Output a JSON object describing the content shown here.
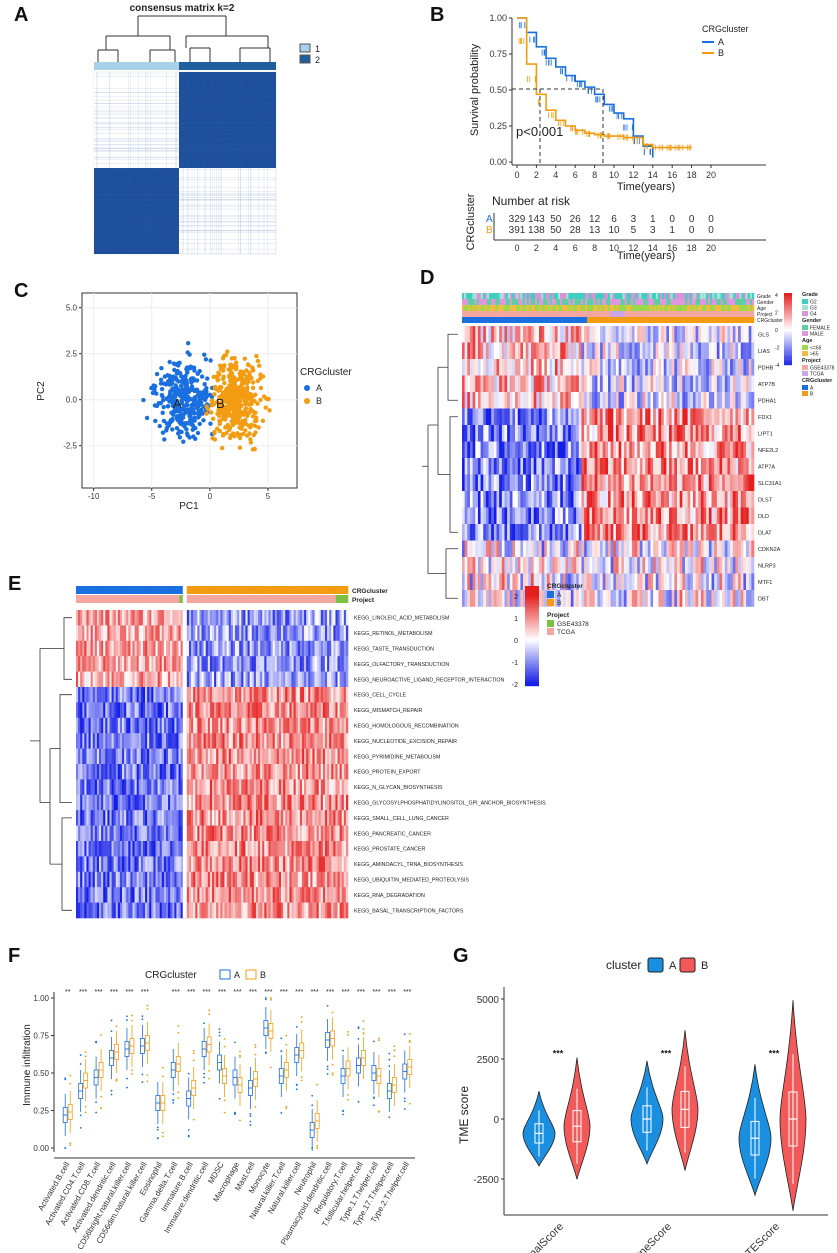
{
  "labels": {
    "a": "A",
    "b": "B",
    "c": "C",
    "d": "D",
    "e": "E",
    "f": "F",
    "g": "G"
  },
  "colors": {
    "A": "#1a6fe0",
    "B": "#f39c12",
    "darkblue": "#1f3f8a",
    "project1": "#7cc242",
    "project2": "#f4a6a0",
    "red": "#f25a5a"
  },
  "panelA": {
    "title": "consensus matrix k=2",
    "legend": [
      "1",
      "2"
    ]
  },
  "panelB": {
    "legend_title": "CRGcluster",
    "legend": [
      "A",
      "B"
    ],
    "ylabel": "Survival probability",
    "xlabel": "Time(years)",
    "pvalue": "p<0.001",
    "yticks": [
      "1.00",
      "0.75",
      "0.50",
      "0.25",
      "0.00"
    ],
    "xticks": [
      "0",
      "2",
      "4",
      "6",
      "8",
      "10",
      "12",
      "14",
      "16",
      "18",
      "20"
    ],
    "risk_title": "Number at risk",
    "risk_ylabel": "CRGcluster",
    "risk_rows": [
      {
        "group": "A",
        "values": [
          "329",
          "143",
          "50",
          "26",
          "12",
          "6",
          "3",
          "1",
          "0",
          "0",
          "0"
        ]
      },
      {
        "group": "B",
        "values": [
          "391",
          "138",
          "50",
          "28",
          "13",
          "10",
          "5",
          "3",
          "1",
          "0",
          "0"
        ]
      }
    ],
    "risk_xlabel": "Time(years)",
    "chart_data": {
      "type": "line",
      "title": "",
      "xlabel": "Time(years)",
      "ylabel": "Survival probability",
      "xlim": [
        0,
        20
      ],
      "ylim": [
        0,
        1
      ],
      "series": [
        {
          "name": "A",
          "x": [
            0,
            1,
            2,
            3,
            4,
            5,
            6,
            7,
            8,
            9,
            10,
            11,
            12,
            13,
            14
          ],
          "values": [
            1.0,
            0.9,
            0.8,
            0.72,
            0.66,
            0.6,
            0.56,
            0.52,
            0.47,
            0.4,
            0.34,
            0.3,
            0.18,
            0.11,
            0.03
          ]
        },
        {
          "name": "B",
          "x": [
            0,
            1,
            2,
            3,
            4,
            5,
            6,
            7,
            8,
            9,
            10,
            11,
            12,
            13,
            14,
            15,
            16,
            17,
            18
          ],
          "values": [
            1.0,
            0.68,
            0.47,
            0.36,
            0.29,
            0.25,
            0.22,
            0.2,
            0.19,
            0.18,
            0.18,
            0.17,
            0.17,
            0.12,
            0.1,
            0.1,
            0.1,
            0.1,
            0.1
          ]
        }
      ]
    }
  },
  "panelC": {
    "xlabel": "PC1",
    "ylabel": "PC2",
    "xticks": [
      "-10",
      "-5",
      "0",
      "5"
    ],
    "yticks": [
      "5.0",
      "2.5",
      "0.0",
      "-2.5"
    ],
    "legend_title": "CRGcluster",
    "legend": [
      "A",
      "B"
    ],
    "center_labels": [
      "A",
      "B"
    ]
  },
  "panelD": {
    "genes": [
      "GLS",
      "LIAS",
      "PDHB",
      "ATP7B",
      "PDHA1",
      "FDX1",
      "LIPT1",
      "NFE2L2",
      "ATP7A",
      "SLC31A1",
      "DLST",
      "DLD",
      "DLAT",
      "CDKN2A",
      "NLRP3",
      "MTF1",
      "DBT"
    ],
    "annot_rows": [
      "Grade",
      "Gender",
      "Age",
      "Project",
      "CRGcluster"
    ],
    "scale": [
      "4",
      "2",
      "0",
      "-2",
      "-4"
    ],
    "legend_groups": [
      {
        "title": "Grade",
        "items": [
          "G2",
          "G3",
          "G4"
        ]
      },
      {
        "title": "Gender",
        "items": [
          "FEMALE",
          "MALE"
        ]
      },
      {
        "title": "Age",
        "items": [
          "<=65",
          ">65"
        ]
      },
      {
        "title": "Project",
        "items": [
          "GSE43378",
          "TCGA"
        ]
      },
      {
        "title": "CRGcluster",
        "items": [
          "A",
          "B"
        ]
      }
    ]
  },
  "panelE": {
    "annot_rows": [
      "CRGcluster",
      "Project"
    ],
    "pathways": [
      "KEGG_LINOLEIC_ACID_METABOLISM",
      "KEGG_RETINOL_METABOLISM",
      "KEGG_TASTE_TRANSDUCTION",
      "KEGG_OLFACTORY_TRANSDUCTION",
      "KEGG_NEUROACTIVE_LIGAND_RECEPTOR_INTERACTION",
      "KEGG_CELL_CYCLE",
      "KEGG_MISMATCH_REPAIR",
      "KEGG_HOMOLOGOUS_RECOMBINATION",
      "KEGG_NUCLEOTIDE_EXCISION_REPAIR",
      "KEGG_PYRIMIDINE_METABOLISM",
      "KEGG_PROTEIN_EXPORT",
      "KEGG_N_GLYCAN_BIOSYNTHESIS",
      "KEGG_GLYCOSYLPHOSPHATIDYLINOSITOL_GPI_ANCHOR_BIOSYNTHESIS",
      "KEGG_SMALL_CELL_LUNG_CANCER",
      "KEGG_PANCREATIC_CANCER",
      "KEGG_PROSTATE_CANCER",
      "KEGG_AMINOACYL_TRNA_BIOSYNTHESIS",
      "KEGG_UBIQUITIN_MEDIATED_PROTEOLYSIS",
      "KEGG_RNA_DEGRADATION",
      "KEGG_BASAL_TRANSCRIPTION_FACTORS"
    ],
    "legend_groups": [
      {
        "title": "CRGcluster",
        "items": [
          "A",
          "B"
        ]
      },
      {
        "title": "Project",
        "items": [
          "GSE43378",
          "TCGA"
        ]
      }
    ],
    "scale": [
      "2",
      "1",
      "0",
      "-1",
      "-2"
    ]
  },
  "panelF": {
    "legend_title": "CRGcluster",
    "legend": [
      "A",
      "B"
    ],
    "ylabel": "Immune infiltration",
    "yticks": [
      "1.00",
      "0.75",
      "0.50",
      "0.25",
      "0.00"
    ],
    "chart_data": {
      "type": "box",
      "ylabel": "Immune infiltration",
      "ylim": [
        0,
        1
      ],
      "categories": [
        "Activated.B.cell",
        "Activated.CD4.T.cell",
        "Activated.CD8.T.cell",
        "Activated.dendritic.cell",
        "CD56bright.natural.killer.cell",
        "CD56dim.natural.killer.cell",
        "Eosinophil",
        "Gamma.delta.T.cell",
        "Immature.B.cell",
        "Immature.dendritic.cell",
        "MDSC",
        "Macrophage",
        "Mast.cell",
        "Monocyte",
        "Natural.killer.T.cell",
        "Natural.killer.cell",
        "Neutrophil",
        "Plasmacytoid.dendritic.cell",
        "Regulatory.T.cell",
        "T.follicular.helper.cell",
        "Type.1.T.helper.cell",
        "Type.17.T.helper.cell",
        "Type.2.T.helper.cell"
      ],
      "significance": [
        "**",
        "***",
        "***",
        "***",
        "***",
        "***",
        "",
        "***",
        "***",
        "***",
        "***",
        "***",
        "***",
        "***",
        "***",
        "***",
        "***",
        "***",
        "***",
        "***",
        "***",
        "***",
        "***"
      ],
      "series": [
        {
          "name": "A",
          "values": [
            0.22,
            0.38,
            0.47,
            0.6,
            0.66,
            0.68,
            0.3,
            0.52,
            0.33,
            0.66,
            0.57,
            0.47,
            0.4,
            0.8,
            0.48,
            0.62,
            0.12,
            0.72,
            0.48,
            0.55,
            0.5,
            0.38,
            0.51
          ]
        },
        {
          "name": "B",
          "values": [
            0.24,
            0.45,
            0.52,
            0.64,
            0.68,
            0.7,
            0.3,
            0.56,
            0.4,
            0.69,
            0.48,
            0.42,
            0.46,
            0.78,
            0.52,
            0.65,
            0.18,
            0.73,
            0.53,
            0.6,
            0.48,
            0.42,
            0.54
          ]
        }
      ]
    }
  },
  "panelG": {
    "legend_title": "cluster",
    "legend": [
      "A",
      "B"
    ],
    "ylabel": "TME score",
    "yticks": [
      "5000",
      "2500",
      "0",
      "-2500"
    ],
    "chart_data": {
      "type": "violin",
      "ylabel": "TME score",
      "ylim": [
        -4000,
        5500
      ],
      "categories": [
        "StromalScore",
        "ImmuneScore",
        "ESTIMATEScore"
      ],
      "significance": [
        "***",
        "***",
        "***"
      ],
      "series": [
        {
          "name": "A",
          "values": [
            -600,
            0,
            -800
          ]
        },
        {
          "name": "B",
          "values": [
            -300,
            400,
            0
          ]
        }
      ]
    }
  }
}
